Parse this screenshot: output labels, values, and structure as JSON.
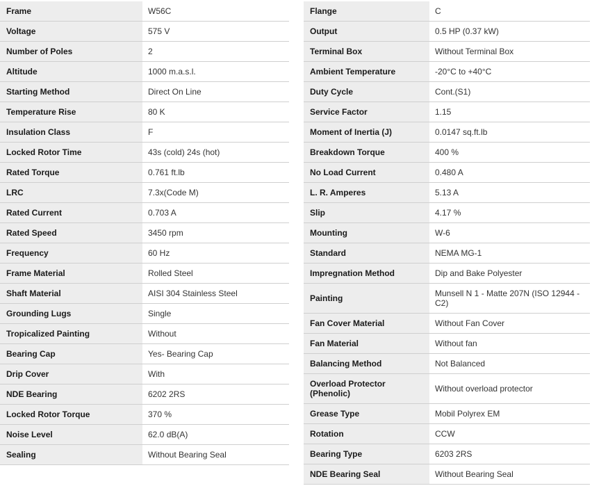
{
  "left": [
    [
      "Frame",
      "W56C"
    ],
    [
      "Voltage",
      "575 V"
    ],
    [
      "Number of Poles",
      "2"
    ],
    [
      "Altitude",
      "1000 m.a.s.l."
    ],
    [
      "Starting Method",
      "Direct On Line"
    ],
    [
      "Temperature Rise",
      "80 K"
    ],
    [
      "Insulation Class",
      "F"
    ],
    [
      "Locked Rotor Time",
      "43s (cold) 24s (hot)"
    ],
    [
      "Rated Torque",
      "0.761 ft.lb"
    ],
    [
      "LRC",
      "7.3x(Code M)"
    ],
    [
      "Rated Current",
      "0.703 A"
    ],
    [
      "Rated Speed",
      "3450 rpm"
    ],
    [
      "Frequency",
      "60 Hz"
    ],
    [
      "Frame Material",
      "Rolled Steel"
    ],
    [
      "Shaft Material",
      "AISI 304 Stainless Steel"
    ],
    [
      "Grounding Lugs",
      "Single"
    ],
    [
      "Tropicalized Painting",
      "Without"
    ],
    [
      "Bearing Cap",
      "Yes- Bearing Cap"
    ],
    [
      "Drip Cover",
      "With"
    ],
    [
      "NDE Bearing",
      "6202 2RS"
    ],
    [
      "Locked Rotor Torque",
      "370 %"
    ],
    [
      "Noise Level",
      "62.0 dB(A)"
    ],
    [
      "Sealing",
      "Without Bearing Seal"
    ]
  ],
  "right": [
    [
      "Flange",
      "C"
    ],
    [
      "Output",
      "0.5 HP (0.37 kW)"
    ],
    [
      "Terminal Box",
      "Without Terminal Box"
    ],
    [
      "Ambient Temperature",
      "-20°C to +40°C"
    ],
    [
      "Duty Cycle",
      "Cont.(S1)"
    ],
    [
      "Service Factor",
      "1.15"
    ],
    [
      "Moment of Inertia (J)",
      "0.0147 sq.ft.lb"
    ],
    [
      "Breakdown Torque",
      "400 %"
    ],
    [
      "No Load Current",
      "0.480 A"
    ],
    [
      "L. R. Amperes",
      "5.13 A"
    ],
    [
      "Slip",
      "4.17 %"
    ],
    [
      "Mounting",
      "W-6"
    ],
    [
      "Standard",
      "NEMA MG-1"
    ],
    [
      "Impregnation Method",
      "Dip and Bake Polyester"
    ],
    [
      "Painting",
      "Munsell N 1 - Matte 207N (ISO 12944 - C2)"
    ],
    [
      "Fan Cover Material",
      "Without Fan Cover"
    ],
    [
      "Fan Material",
      "Without fan"
    ],
    [
      "Balancing Method",
      "Not Balanced"
    ],
    [
      "Overload Protector (Phenolic)",
      "Without overload protector"
    ],
    [
      "Grease Type",
      "Mobil Polyrex EM"
    ],
    [
      "Rotation",
      "CCW"
    ],
    [
      "Bearing Type",
      "6203 2RS"
    ],
    [
      "NDE Bearing Seal",
      "Without Bearing Seal"
    ]
  ]
}
